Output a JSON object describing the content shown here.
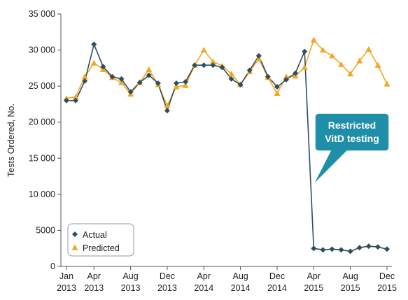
{
  "chart_data": {
    "type": "line",
    "ylabel": "Tests Ordered, No.",
    "ylim": [
      0,
      35000
    ],
    "yticks": [
      0,
      5000,
      10000,
      15000,
      20000,
      25000,
      30000,
      35000
    ],
    "ytick_labels": [
      "0",
      "5000",
      "10 000",
      "15 000",
      "20 000",
      "25 000",
      "30 000",
      "35 000"
    ],
    "xticks": [
      {
        "month_index": 0,
        "line1": "Jan",
        "line2": "2013"
      },
      {
        "month_index": 3,
        "line1": "Apr",
        "line2": "2013"
      },
      {
        "month_index": 7,
        "line1": "Aug",
        "line2": "2013"
      },
      {
        "month_index": 11,
        "line1": "Dec",
        "line2": "2013"
      },
      {
        "month_index": 15,
        "line1": "Apr",
        "line2": "2014"
      },
      {
        "month_index": 19,
        "line1": "Aug",
        "line2": "2014"
      },
      {
        "month_index": 23,
        "line1": "Dec",
        "line2": "2014"
      },
      {
        "month_index": 27,
        "line1": "Apr",
        "line2": "2015"
      },
      {
        "month_index": 31,
        "line1": "Aug",
        "line2": "2015"
      },
      {
        "month_index": 35,
        "line1": "Dec",
        "line2": "2015"
      }
    ],
    "x": [
      "2013-01",
      "2013-02",
      "2013-03",
      "2013-04",
      "2013-05",
      "2013-06",
      "2013-07",
      "2013-08",
      "2013-09",
      "2013-10",
      "2013-11",
      "2013-12",
      "2014-01",
      "2014-02",
      "2014-03",
      "2014-04",
      "2014-05",
      "2014-06",
      "2014-07",
      "2014-08",
      "2014-09",
      "2014-10",
      "2014-11",
      "2014-12",
      "2015-01",
      "2015-02",
      "2015-03",
      "2015-04",
      "2015-05",
      "2015-06",
      "2015-07",
      "2015-08",
      "2015-09",
      "2015-10",
      "2015-11",
      "2015-12"
    ],
    "series": [
      {
        "name": "Actual",
        "color": "#2f4f5f",
        "marker": "diamond",
        "values": [
          23000,
          23000,
          25700,
          30800,
          27700,
          26300,
          26000,
          24200,
          25500,
          26500,
          25400,
          21600,
          25400,
          25600,
          27900,
          27900,
          27900,
          27600,
          26000,
          25200,
          27200,
          29200,
          26300,
          24900,
          25900,
          26800,
          29800,
          2500,
          2300,
          2400,
          2300,
          2100,
          2600,
          2800,
          2700,
          2400
        ]
      },
      {
        "name": "Predicted",
        "color": "#f5a623",
        "marker": "triangle",
        "values": [
          23300,
          23500,
          26300,
          28200,
          27300,
          26200,
          25500,
          23900,
          25500,
          27300,
          25200,
          22300,
          24900,
          25100,
          27900,
          30000,
          28400,
          27800,
          26700,
          25200,
          27000,
          28800,
          26200,
          24000,
          26300,
          26400,
          27600,
          31400,
          30000,
          29200,
          28000,
          26700,
          28500,
          30100,
          27900,
          25300
        ]
      }
    ],
    "legend": {
      "placement": "bottom-left",
      "entries": [
        "Actual",
        "Predicted"
      ]
    },
    "annotation": {
      "line1": "Restricted",
      "line2": "VitD testing",
      "fill": "#1f8ea8"
    },
    "grid": false
  }
}
